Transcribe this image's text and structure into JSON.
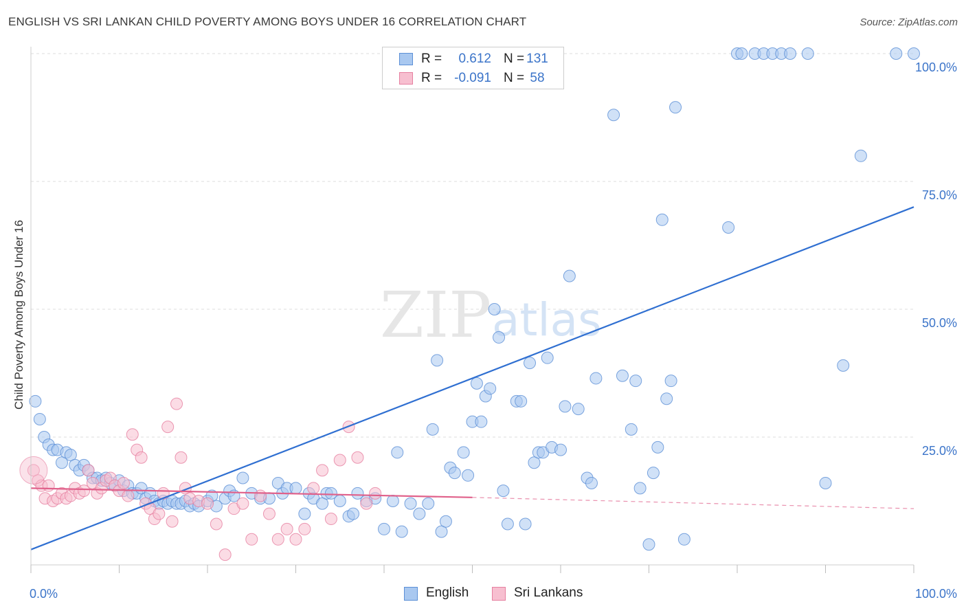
{
  "title": "ENGLISH VS SRI LANKAN CHILD POVERTY AMONG BOYS UNDER 16 CORRELATION CHART",
  "source": "Source: ZipAtlas.com",
  "watermark": {
    "zip": "ZIP",
    "atlas": "atlas"
  },
  "legend": {
    "rows": [
      {
        "r_label": "R =",
        "r_value": "0.612",
        "n_label": "N =",
        "n_value": "131",
        "fill": "#a9c8f0",
        "stroke": "#5b8fd6"
      },
      {
        "r_label": "R =",
        "r_value": "-0.091",
        "n_label": "N =",
        "n_value": "58",
        "fill": "#f7bfd0",
        "stroke": "#e67fa0"
      }
    ]
  },
  "bottom_legend": [
    {
      "label": "English",
      "fill": "#a9c8f0",
      "stroke": "#5b8fd6"
    },
    {
      "label": "Sri Lankans",
      "fill": "#f7bfd0",
      "stroke": "#e67fa0"
    }
  ],
  "chart_data": {
    "type": "scatter",
    "xlabel": "",
    "ylabel": "Child Poverty Among Boys Under 16",
    "xlim": [
      0,
      100
    ],
    "ylim": [
      0,
      100
    ],
    "x_tick_labels": [
      "0.0%",
      "100.0%"
    ],
    "y_tick_labels": [
      {
        "value": 100,
        "label": "100.0%"
      },
      {
        "value": 75,
        "label": "75.0%"
      },
      {
        "value": 50,
        "label": "50.0%"
      },
      {
        "value": 25,
        "label": "25.0%"
      }
    ],
    "colors": {
      "english_fill": "#a9c8f0",
      "english_stroke": "#5b8fd6",
      "english_line": "#2f6fd1",
      "srilankan_fill": "#f7bfd0",
      "srilankan_stroke": "#e67fa0",
      "srilankan_line": "#e0608a",
      "grid": "#dddddd",
      "tick_text": "#3b74c9"
    },
    "series": [
      {
        "name": "English",
        "trend": {
          "x0": 0,
          "y0": 3,
          "x1": 100,
          "y1": 70
        },
        "points": [
          [
            0.5,
            32
          ],
          [
            1,
            28.5
          ],
          [
            1.5,
            25
          ],
          [
            2,
            23.5
          ],
          [
            2.5,
            22.5
          ],
          [
            3,
            22.5
          ],
          [
            3.5,
            20
          ],
          [
            4,
            22
          ],
          [
            4.5,
            21.5
          ],
          [
            5,
            19.5
          ],
          [
            5.5,
            18.5
          ],
          [
            6,
            19.5
          ],
          [
            6.5,
            18.5
          ],
          [
            7,
            17
          ],
          [
            7.5,
            17
          ],
          [
            8,
            16.5
          ],
          [
            8.5,
            17
          ],
          [
            9,
            16
          ],
          [
            9.5,
            15.5
          ],
          [
            10,
            16.5
          ],
          [
            10.5,
            14.5
          ],
          [
            11,
            15.5
          ],
          [
            11.5,
            14
          ],
          [
            12,
            14
          ],
          [
            12.5,
            15
          ],
          [
            13,
            13
          ],
          [
            13.5,
            14
          ],
          [
            14,
            12.5
          ],
          [
            14.5,
            12
          ],
          [
            15,
            12.5
          ],
          [
            15.5,
            12
          ],
          [
            16,
            12.5
          ],
          [
            16.5,
            12
          ],
          [
            17,
            12
          ],
          [
            17.5,
            12.5
          ],
          [
            18,
            11.5
          ],
          [
            18.5,
            12
          ],
          [
            19,
            11.5
          ],
          [
            20,
            12.5
          ],
          [
            20.5,
            13.5
          ],
          [
            21,
            11.5
          ],
          [
            22,
            13
          ],
          [
            22.5,
            14.5
          ],
          [
            23,
            13.5
          ],
          [
            24,
            17
          ],
          [
            25,
            14
          ],
          [
            26,
            13
          ],
          [
            27,
            13
          ],
          [
            28,
            16
          ],
          [
            28.5,
            14
          ],
          [
            29,
            15
          ],
          [
            30,
            15
          ],
          [
            31,
            10
          ],
          [
            31.5,
            14
          ],
          [
            32,
            13
          ],
          [
            33,
            12
          ],
          [
            33.5,
            14
          ],
          [
            34,
            14
          ],
          [
            35,
            12.5
          ],
          [
            36,
            9.5
          ],
          [
            36.5,
            10
          ],
          [
            37,
            14
          ],
          [
            38,
            12.5
          ],
          [
            39,
            13
          ],
          [
            40,
            7
          ],
          [
            41,
            12.5
          ],
          [
            41.5,
            22
          ],
          [
            42,
            6.5
          ],
          [
            43,
            12
          ],
          [
            44,
            10
          ],
          [
            45,
            12
          ],
          [
            45.5,
            26.5
          ],
          [
            46,
            40
          ],
          [
            46.5,
            6.5
          ],
          [
            47,
            8.5
          ],
          [
            47.5,
            19
          ],
          [
            48,
            18
          ],
          [
            49,
            22
          ],
          [
            49.5,
            17.5
          ],
          [
            50,
            28
          ],
          [
            50.5,
            35.5
          ],
          [
            51,
            28
          ],
          [
            51.5,
            33
          ],
          [
            52,
            34.5
          ],
          [
            52.5,
            50
          ],
          [
            53,
            44.5
          ],
          [
            53.5,
            14.5
          ],
          [
            54,
            8
          ],
          [
            55,
            32
          ],
          [
            55.5,
            32
          ],
          [
            56,
            8
          ],
          [
            56.5,
            39.5
          ],
          [
            57,
            20
          ],
          [
            57.5,
            22
          ],
          [
            58,
            22
          ],
          [
            58.5,
            40.5
          ],
          [
            59,
            23
          ],
          [
            60,
            22.5
          ],
          [
            60.5,
            31
          ],
          [
            61,
            56.5
          ],
          [
            62,
            30.5
          ],
          [
            63,
            17
          ],
          [
            63.5,
            16
          ],
          [
            64,
            36.5
          ],
          [
            66,
            88
          ],
          [
            67,
            37
          ],
          [
            68,
            26.5
          ],
          [
            68.5,
            36
          ],
          [
            69,
            15
          ],
          [
            70,
            4
          ],
          [
            70.5,
            18
          ],
          [
            71,
            23
          ],
          [
            71.5,
            67.5
          ],
          [
            72,
            32.5
          ],
          [
            72.5,
            36
          ],
          [
            73,
            89.5
          ],
          [
            74,
            5
          ],
          [
            79,
            66
          ],
          [
            80,
            100
          ],
          [
            80.5,
            100
          ],
          [
            82,
            100
          ],
          [
            83,
            100
          ],
          [
            84,
            100
          ],
          [
            85,
            100
          ],
          [
            86,
            100
          ],
          [
            88,
            100
          ],
          [
            90,
            16
          ],
          [
            92,
            39
          ],
          [
            94,
            80
          ],
          [
            98,
            100
          ],
          [
            100,
            100
          ]
        ]
      },
      {
        "name": "Sri Lankans",
        "trend": {
          "x0": 0,
          "y0": 15,
          "x1": 50,
          "y1": 13.2,
          "dash_x1": 100,
          "dash_y1": 11
        },
        "points": [
          [
            0.3,
            18.5
          ],
          [
            0.8,
            16.5
          ],
          [
            1.2,
            15.5
          ],
          [
            1.6,
            13
          ],
          [
            2,
            15.5
          ],
          [
            2.5,
            12.5
          ],
          [
            3,
            13
          ],
          [
            3.5,
            14
          ],
          [
            4,
            13
          ],
          [
            4.5,
            13.5
          ],
          [
            5,
            15
          ],
          [
            5.5,
            14
          ],
          [
            6,
            14.5
          ],
          [
            6.5,
            18.5
          ],
          [
            7,
            16
          ],
          [
            7.5,
            14
          ],
          [
            8,
            15
          ],
          [
            8.5,
            16.5
          ],
          [
            9,
            17
          ],
          [
            9.5,
            15.5
          ],
          [
            10,
            14.5
          ],
          [
            10.5,
            16
          ],
          [
            11,
            13.5
          ],
          [
            11.5,
            25.5
          ],
          [
            12,
            22.5
          ],
          [
            12.5,
            21
          ],
          [
            13,
            12
          ],
          [
            13.5,
            11
          ],
          [
            14,
            9
          ],
          [
            14.5,
            10
          ],
          [
            15,
            14
          ],
          [
            15.5,
            27
          ],
          [
            16,
            8.5
          ],
          [
            16.5,
            31.5
          ],
          [
            17,
            21
          ],
          [
            17.5,
            15
          ],
          [
            18,
            13
          ],
          [
            19,
            12.5
          ],
          [
            20,
            12
          ],
          [
            21,
            8
          ],
          [
            22,
            2
          ],
          [
            23,
            11
          ],
          [
            24,
            12
          ],
          [
            25,
            5
          ],
          [
            26,
            13.5
          ],
          [
            27,
            10
          ],
          [
            28,
            5
          ],
          [
            29,
            7
          ],
          [
            30,
            5
          ],
          [
            31,
            7
          ],
          [
            32,
            15
          ],
          [
            33,
            18.5
          ],
          [
            34,
            9
          ],
          [
            35,
            20.5
          ],
          [
            36,
            27
          ],
          [
            37,
            21
          ],
          [
            38,
            12
          ],
          [
            39,
            14
          ]
        ]
      }
    ]
  }
}
